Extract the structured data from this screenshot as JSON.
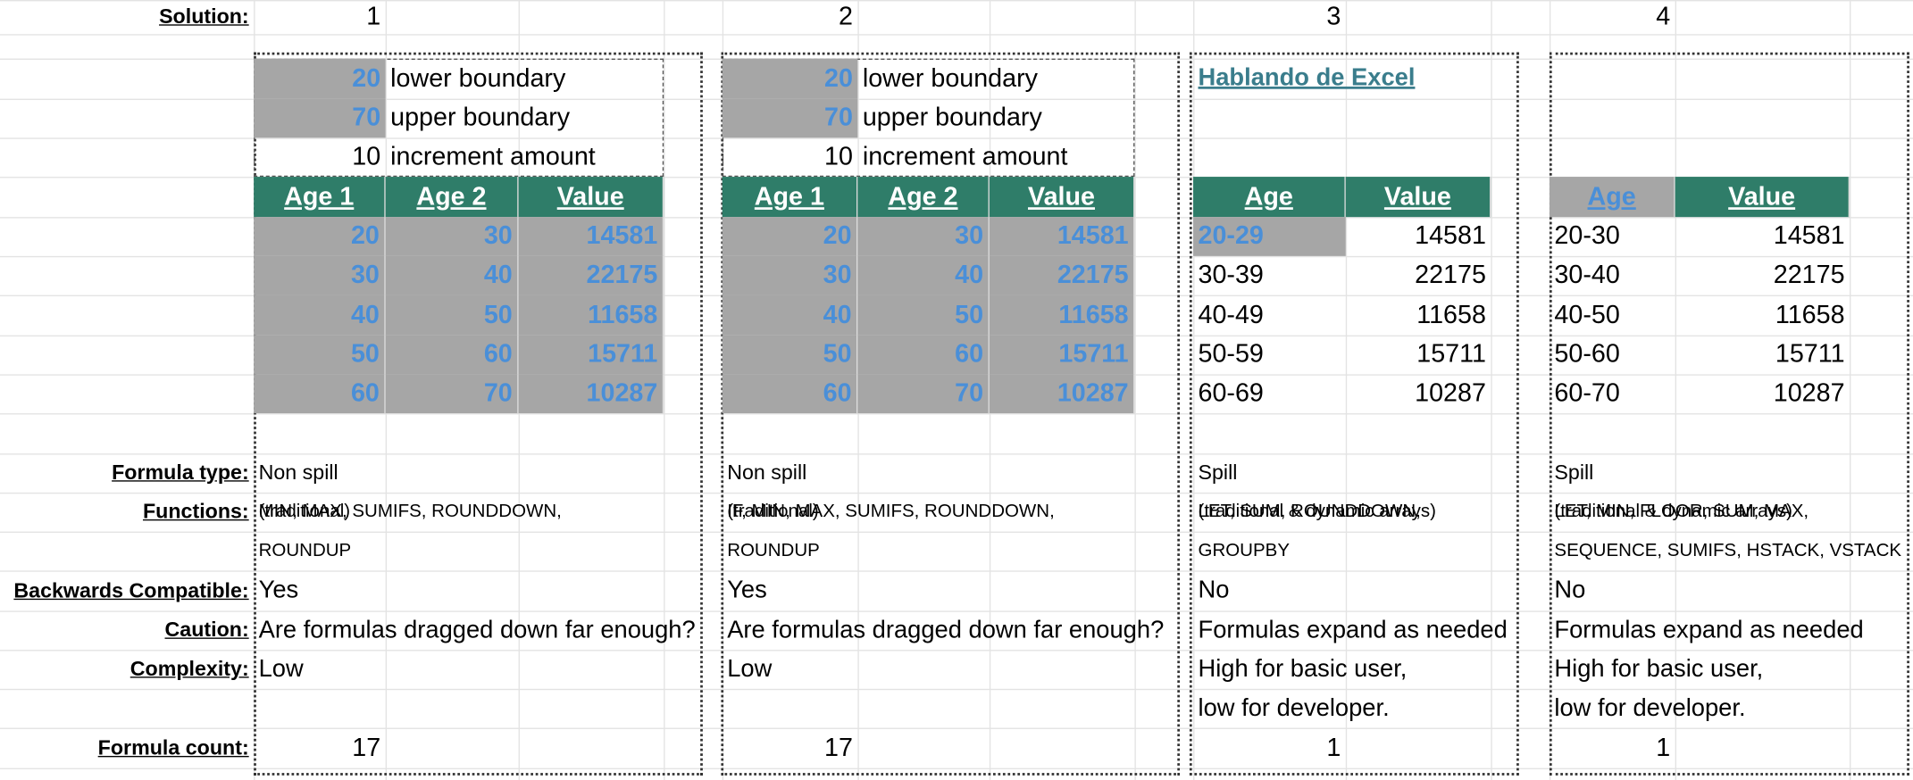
{
  "labels": {
    "solution": "Solution:",
    "formula_type": "Formula type:",
    "functions": "Functions:",
    "backwards": "Backwards Compatible:",
    "caution": "Caution:",
    "complexity": "Complexity:",
    "formula_count": "Formula count:"
  },
  "solutions": [
    {
      "number": 1,
      "params": [
        {
          "value": 20,
          "label": "lower boundary"
        },
        {
          "value": 70,
          "label": "upper boundary"
        },
        {
          "value": 10,
          "label": "increment amount"
        }
      ],
      "table": {
        "headers": [
          "Age 1",
          "Age 2",
          "Value"
        ],
        "rows": [
          [
            20,
            30,
            14581
          ],
          [
            30,
            40,
            22175
          ],
          [
            40,
            50,
            11658
          ],
          [
            50,
            60,
            15711
          ],
          [
            60,
            70,
            10287
          ]
        ]
      },
      "formula_type": "Non spill",
      "formula_type_note": "(traditional)",
      "functions": [
        "MIN, MAX, SUMIFS, ROUNDDOWN,",
        "ROUNDUP"
      ],
      "backwards": "Yes",
      "caution": "Are formulas dragged down far enough?",
      "complexity": [
        "Low"
      ],
      "formula_count": 17
    },
    {
      "number": 2,
      "params": [
        {
          "value": 20,
          "label": "lower boundary"
        },
        {
          "value": 70,
          "label": "upper boundary"
        },
        {
          "value": 10,
          "label": "increment amount"
        }
      ],
      "table": {
        "headers": [
          "Age 1",
          "Age 2",
          "Value"
        ],
        "rows": [
          [
            20,
            30,
            14581
          ],
          [
            30,
            40,
            22175
          ],
          [
            40,
            50,
            11658
          ],
          [
            50,
            60,
            15711
          ],
          [
            60,
            70,
            10287
          ]
        ]
      },
      "formula_type": "Non spill",
      "formula_type_note": "(traditional)",
      "functions": [
        "IF, MIN, MAX, SUMIFS, ROUNDDOWN,",
        "ROUNDUP"
      ],
      "backwards": "Yes",
      "caution": "Are formulas dragged down far enough?",
      "complexity": [
        "Low"
      ],
      "formula_count": 17
    },
    {
      "number": 3,
      "link": "Hablando de Excel",
      "table": {
        "headers": [
          "Age",
          "Value"
        ],
        "rows": [
          [
            "20-29",
            14581
          ],
          [
            "30-39",
            22175
          ],
          [
            "40-49",
            11658
          ],
          [
            "50-59",
            15711
          ],
          [
            "60-69",
            10287
          ]
        ]
      },
      "formula_type": "Spill",
      "formula_type_note": "(traditional & dynamic arrays)",
      "functions": [
        "LET, SUM, ROUNDDOWN,",
        "GROUPBY"
      ],
      "backwards": "No",
      "caution": "Formulas expand as needed",
      "complexity": [
        "High for basic user,",
        "low for developer."
      ],
      "formula_count": 1
    },
    {
      "number": 4,
      "table": {
        "headers": [
          "Age",
          "Value"
        ],
        "rows": [
          [
            "20-30",
            14581
          ],
          [
            "30-40",
            22175
          ],
          [
            "40-50",
            11658
          ],
          [
            "50-60",
            15711
          ],
          [
            "60-70",
            10287
          ]
        ]
      },
      "formula_type": "Spill",
      "formula_type_note": "(traditional & dynamic arrays)",
      "functions": [
        "LET, MIN, FLOOR, SUM, MAX,",
        "SEQUENCE, SUMIFS, HSTACK, VSTACK"
      ],
      "backwards": "No",
      "caution": "Formulas expand as needed",
      "complexity": [
        "High for basic user,",
        "low for developer."
      ],
      "formula_count": 1
    }
  ]
}
